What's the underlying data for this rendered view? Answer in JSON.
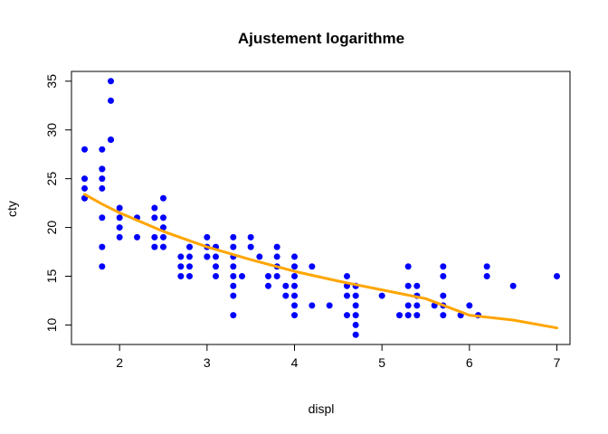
{
  "chart_data": {
    "type": "scatter",
    "title": "Ajustement logarithme",
    "xlabel": "displ",
    "ylabel": "cty",
    "xlim": [
      1.45,
      7.15
    ],
    "ylim": [
      8.0,
      36.0
    ],
    "x_ticks": [
      2,
      3,
      4,
      5,
      6,
      7
    ],
    "y_ticks": [
      10,
      15,
      20,
      25,
      30,
      35
    ],
    "grid": false,
    "legend": "none",
    "colors": {
      "points": "#0000ff",
      "fit_line": "#ffa500"
    },
    "series": [
      {
        "type": "scatter",
        "x": [
          1.6,
          1.6,
          1.6,
          1.6,
          1.6,
          1.8,
          1.8,
          1.8,
          1.8,
          1.8,
          1.8,
          1.8,
          1.8,
          1.9,
          1.9,
          1.9,
          1.9,
          2.0,
          2.0,
          2.0,
          2.0,
          2.2,
          2.2,
          2.4,
          2.4,
          2.4,
          2.4,
          2.5,
          2.5,
          2.5,
          2.5,
          2.5,
          2.7,
          2.7,
          2.7,
          2.8,
          2.8,
          2.8,
          2.8,
          3.0,
          3.0,
          3.0,
          3.0,
          3.1,
          3.1,
          3.1,
          3.1,
          3.3,
          3.3,
          3.3,
          3.3,
          3.3,
          3.3,
          3.3,
          3.3,
          3.4,
          3.5,
          3.5,
          3.6,
          3.7,
          3.7,
          3.8,
          3.8,
          3.8,
          3.8,
          3.9,
          3.9,
          4.0,
          4.0,
          4.0,
          4.0,
          4.0,
          4.0,
          4.0,
          4.2,
          4.2,
          4.4,
          4.6,
          4.6,
          4.6,
          4.6,
          4.7,
          4.7,
          4.7,
          4.7,
          4.7,
          4.7,
          4.7,
          5.0,
          5.2,
          5.3,
          5.3,
          5.3,
          5.3,
          5.4,
          5.4,
          5.4,
          5.4,
          5.6,
          5.7,
          5.7,
          5.7,
          5.7,
          5.7,
          5.9,
          6.0,
          6.1,
          6.2,
          6.2,
          6.5,
          7.0
        ],
        "y": [
          28,
          25,
          24,
          23,
          23,
          28,
          26,
          25,
          24,
          21,
          18,
          16,
          26,
          35,
          33,
          29,
          29,
          22,
          21,
          20,
          19,
          21,
          19,
          22,
          21,
          19,
          18,
          23,
          21,
          20,
          19,
          18,
          17,
          16,
          15,
          18,
          17,
          16,
          15,
          19,
          18,
          17,
          17,
          18,
          17,
          16,
          15,
          19,
          18,
          17,
          16,
          15,
          14,
          13,
          11,
          15,
          19,
          18,
          17,
          15,
          14,
          18,
          17,
          16,
          15,
          14,
          13,
          17,
          16,
          15,
          14,
          13,
          12,
          11,
          16,
          12,
          12,
          15,
          14,
          13,
          11,
          14,
          13,
          12,
          11,
          10,
          9,
          14,
          13,
          11,
          16,
          14,
          12,
          11,
          14,
          13,
          12,
          11,
          12,
          16,
          15,
          13,
          12,
          11,
          11,
          12,
          11,
          16,
          15,
          14,
          15
        ]
      },
      {
        "type": "line",
        "name": "",
        "x": [
          1.6,
          1.8,
          2.0,
          2.5,
          3.0,
          3.5,
          4.0,
          4.5,
          5.0,
          5.5,
          6.0,
          6.5,
          7.0
        ],
        "y": [
          23.4,
          22.4,
          21.5,
          19.6,
          18.0,
          16.7,
          15.5,
          14.5,
          13.6,
          12.7,
          11.0,
          10.5,
          9.7
        ]
      }
    ]
  }
}
